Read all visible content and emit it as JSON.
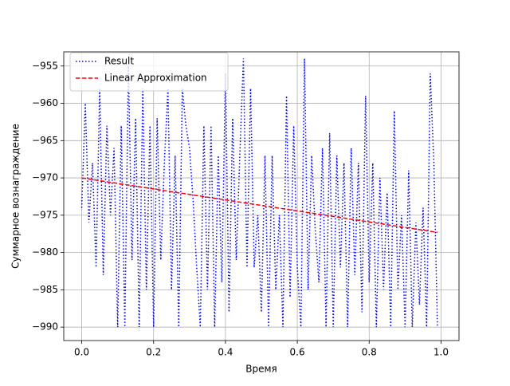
{
  "chart_data": {
    "type": "line",
    "xlabel": "Время",
    "ylabel": "Суммарное вознаграждение",
    "xlim": [
      -0.05,
      1.05
    ],
    "ylim": [
      -991.8,
      -953.1
    ],
    "xticks": [
      {
        "value": 0,
        "label": "0.0"
      },
      0.2,
      0.4,
      0.6,
      0.8,
      {
        "value": 1,
        "label": "1.0"
      }
    ],
    "yticks": [
      {
        "value": -990,
        "label": "−990"
      },
      {
        "value": -985,
        "label": "−985"
      },
      {
        "value": -980,
        "label": "−980"
      },
      {
        "value": -975,
        "label": "−975"
      },
      {
        "value": -970,
        "label": "−970"
      },
      {
        "value": -965,
        "label": "−965"
      },
      {
        "value": -960,
        "label": "−960"
      },
      {
        "value": -955,
        "label": "−955"
      }
    ],
    "grid": true,
    "legend": "upper left",
    "series": [
      {
        "name": "Result",
        "color": "#0000ff",
        "style": "dotted",
        "x": [
          0,
          0.01,
          0.02,
          0.03,
          0.04,
          0.05,
          0.06,
          0.07,
          0.08,
          0.09,
          0.1,
          0.11,
          0.12,
          0.13,
          0.14,
          0.15,
          0.16,
          0.17,
          0.18,
          0.19,
          0.2,
          0.21,
          0.22,
          0.23,
          0.24,
          0.25,
          0.26,
          0.27,
          0.28,
          0.29,
          0.3,
          0.31,
          0.32,
          0.33,
          0.34,
          0.35,
          0.36,
          0.37,
          0.38,
          0.39,
          0.4,
          0.41,
          0.42,
          0.43,
          0.44,
          0.45,
          0.46,
          0.47,
          0.48,
          0.49,
          0.5,
          0.51,
          0.52,
          0.53,
          0.54,
          0.55,
          0.56,
          0.57,
          0.58,
          0.59,
          0.6,
          0.61,
          0.62,
          0.63,
          0.64,
          0.65,
          0.66,
          0.67,
          0.68,
          0.69,
          0.7,
          0.71,
          0.72,
          0.73,
          0.74,
          0.75,
          0.76,
          0.77,
          0.78,
          0.79,
          0.8,
          0.81,
          0.82,
          0.83,
          0.84,
          0.85,
          0.86,
          0.87,
          0.88,
          0.89,
          0.9,
          0.91,
          0.92,
          0.93,
          0.94,
          0.95,
          0.96,
          0.97,
          0.98,
          0.99
        ],
        "values": [
          -974,
          -960,
          -976,
          -968,
          -982,
          -958,
          -983,
          -963,
          -975,
          -966,
          -990,
          -963,
          -990,
          -955,
          -981,
          -962,
          -990,
          -958,
          -985,
          -963,
          -990,
          -962,
          -981,
          -968,
          -958,
          -985,
          -967,
          -990,
          -958,
          -963,
          -966,
          -973,
          -982,
          -990,
          -963,
          -985,
          -963,
          -990,
          -967,
          -984,
          -956,
          -988,
          -962,
          -981,
          -967,
          -954,
          -982,
          -958,
          -982,
          -975,
          -988,
          -967,
          -990,
          -967,
          -985,
          -975,
          -990,
          -959,
          -986,
          -963,
          -982,
          -990,
          -954,
          -985,
          -967,
          -977,
          -984,
          -966,
          -990,
          -964,
          -990,
          -967,
          -982,
          -968,
          -990,
          -966,
          -983,
          -968,
          -988,
          -959,
          -984,
          -968,
          -990,
          -970,
          -985,
          -972,
          -990,
          -961,
          -985,
          -975,
          -990,
          -969,
          -990,
          -976,
          -987,
          -974,
          -990,
          -956,
          -968,
          -990
        ]
      },
      {
        "name": "Linear Approximation",
        "color": "#ff0000",
        "style": "dashed",
        "x": [
          0,
          0.99
        ],
        "values": [
          -970.0,
          -977.3
        ]
      }
    ]
  }
}
